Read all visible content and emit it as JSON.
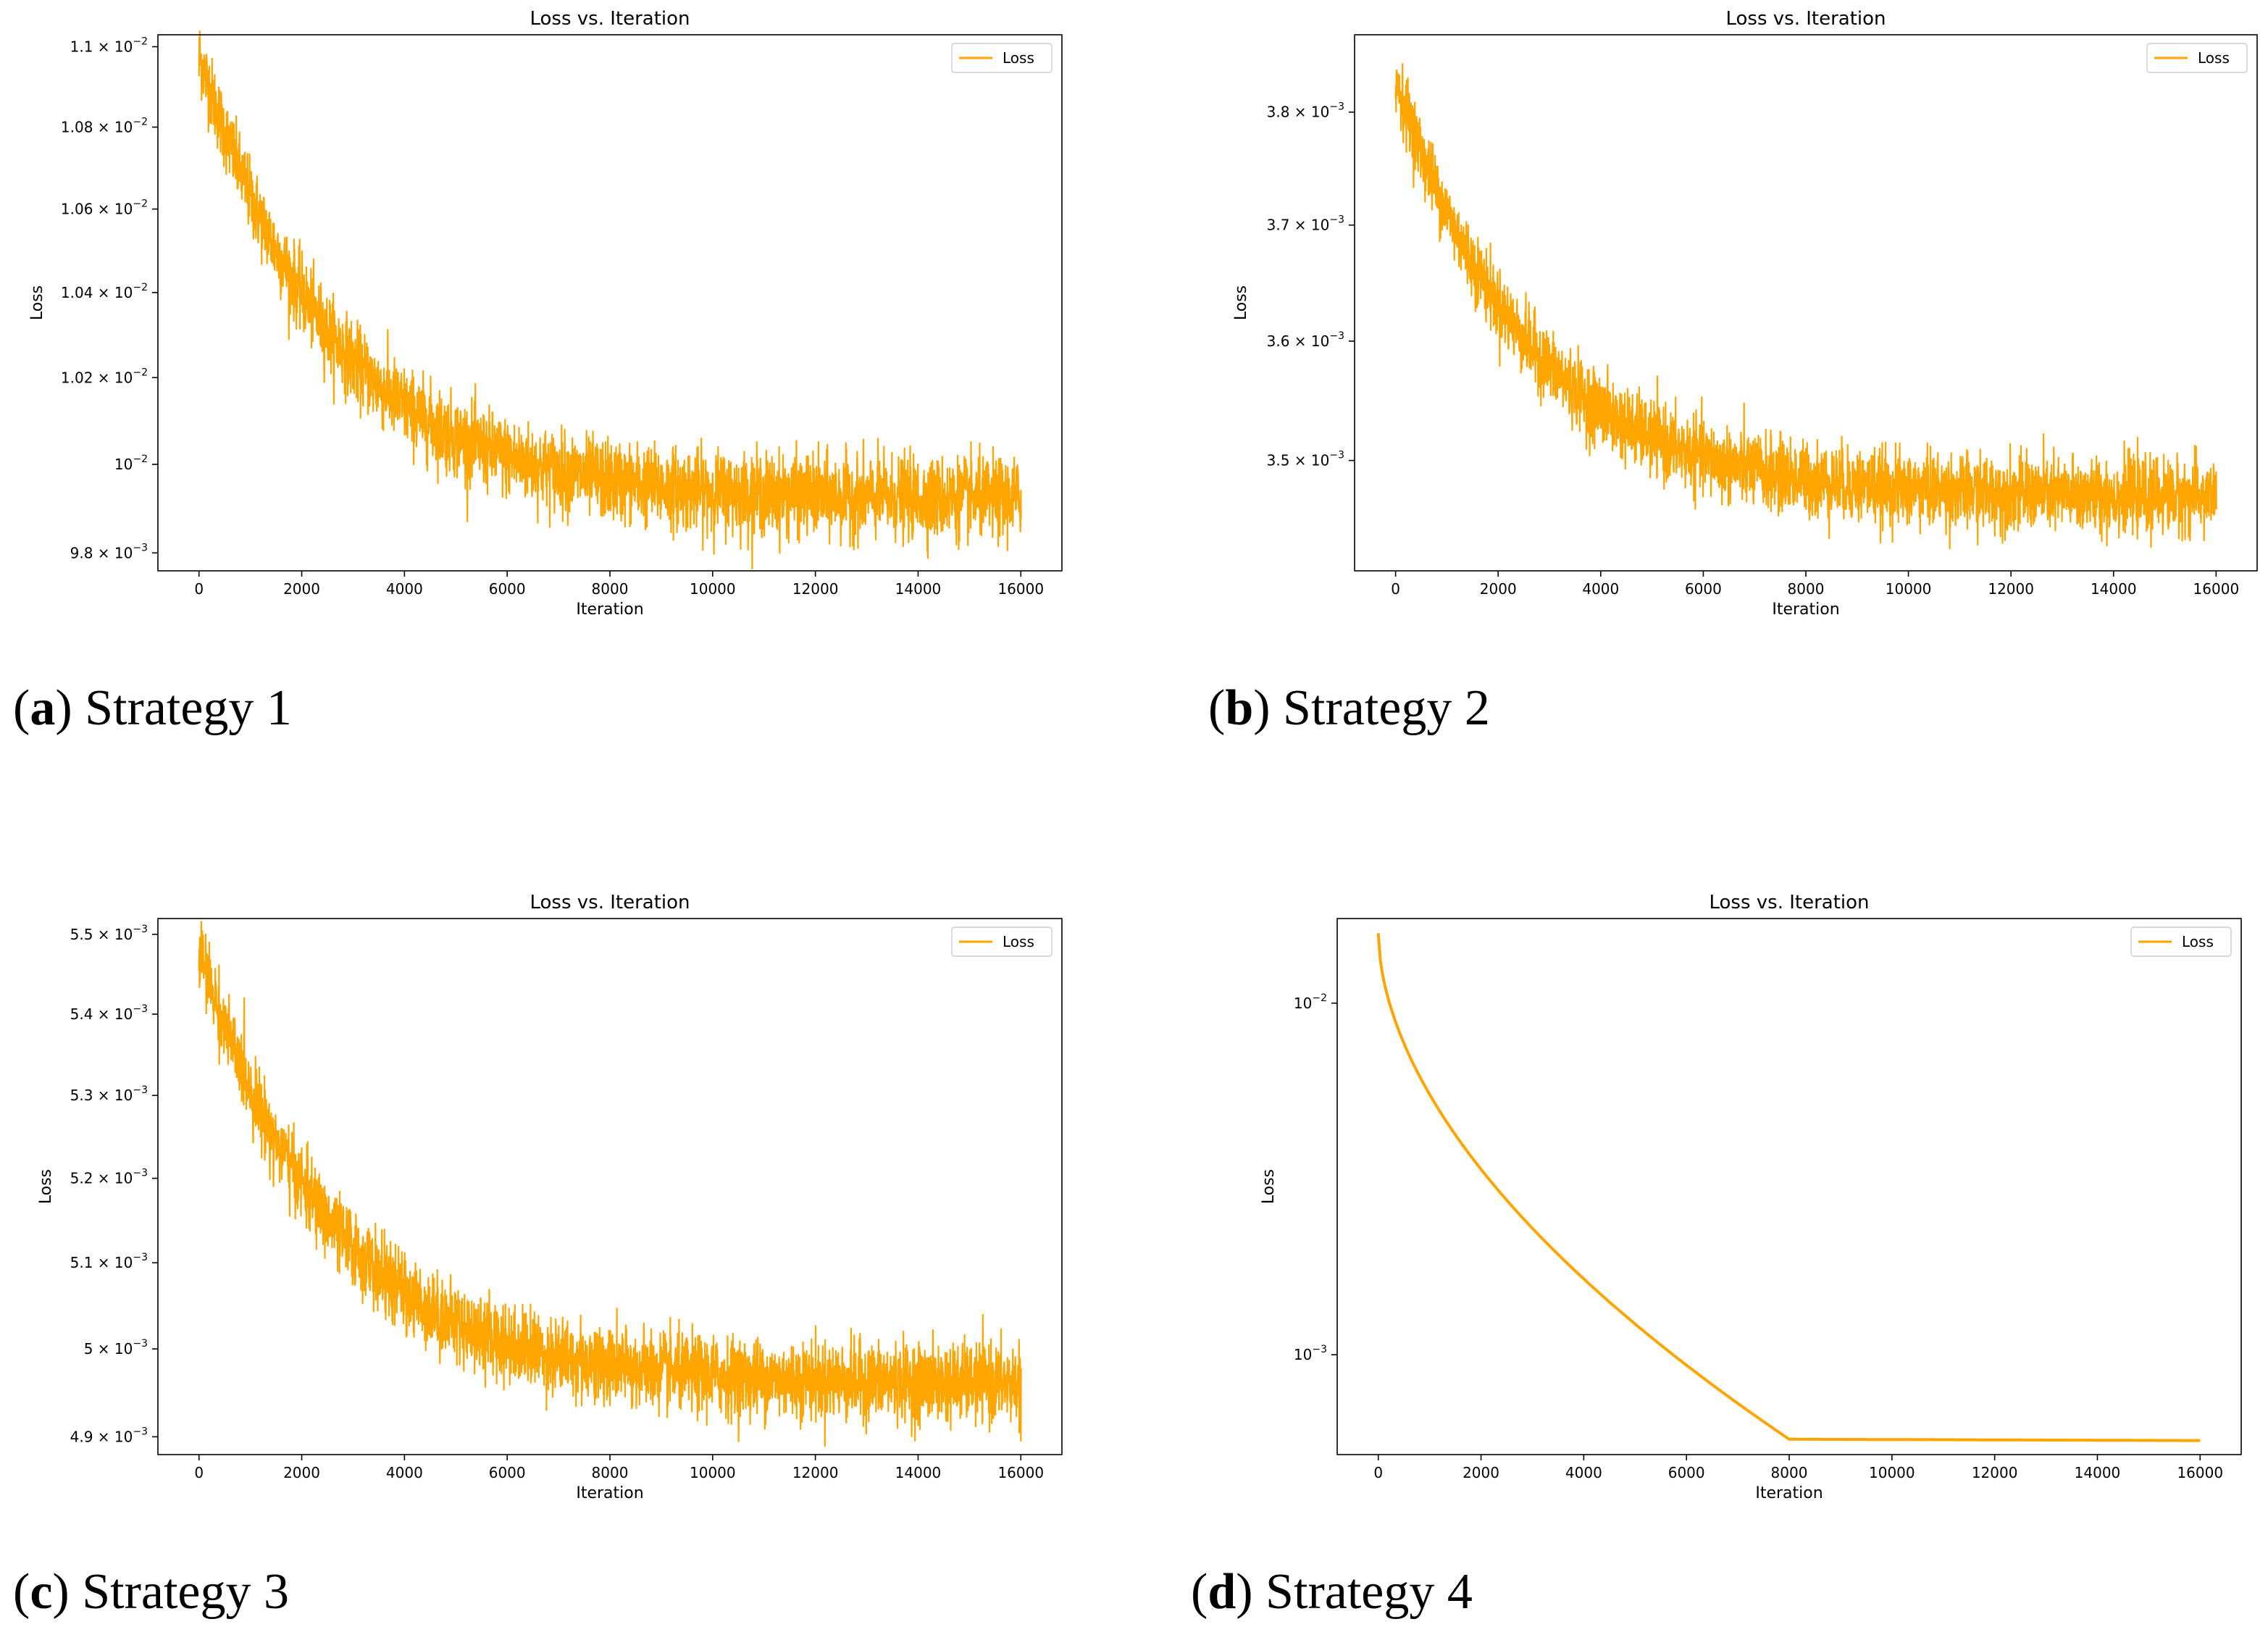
{
  "chart_data": [
    {
      "type": "line",
      "title": "Loss vs. Iteration",
      "xlabel": "Iteration",
      "ylabel": "Loss",
      "legend": [
        "Loss"
      ],
      "legend_position": "top-right",
      "yscale": "log",
      "color": "#FFA500",
      "caption_letter": "a",
      "caption_text": "Strategy 1",
      "xlim": [
        -800,
        16800
      ],
      "ylim": [
        0.00976,
        0.01103
      ],
      "xticks": [
        0,
        2000,
        4000,
        6000,
        8000,
        10000,
        12000,
        14000,
        16000
      ],
      "xtick_labels": [
        "0",
        "2000",
        "4000",
        "6000",
        "8000",
        "10000",
        "12000",
        "14000",
        "16000"
      ],
      "yticks": [
        {
          "value": 0.0098,
          "mant": "9.8 × 10",
          "exp": "−3"
        },
        {
          "value": 0.01,
          "mant": "10",
          "exp": "−2"
        },
        {
          "value": 0.0102,
          "mant": "1.02 × 10",
          "exp": "−2"
        },
        {
          "value": 0.0104,
          "mant": "1.04 × 10",
          "exp": "−2"
        },
        {
          "value": 0.0106,
          "mant": "1.06 × 10",
          "exp": "−2"
        },
        {
          "value": 0.0108,
          "mant": "1.08 × 10",
          "exp": "−2"
        },
        {
          "value": 0.011,
          "mant": "1.1 × 10",
          "exp": "−2"
        }
      ],
      "series": [
        {
          "name": "Loss",
          "start": 0.01098,
          "plateau": 0.00992,
          "decay_iters": 2500,
          "noise": 4.5e-05,
          "n_points": 16000
        }
      ]
    },
    {
      "type": "line",
      "title": "Loss vs. Iteration",
      "xlabel": "Iteration",
      "ylabel": "Loss",
      "legend": [
        "Loss"
      ],
      "legend_position": "top-right",
      "yscale": "log",
      "color": "#FFA500",
      "caption_letter": "b",
      "caption_text": "Strategy 2",
      "xlim": [
        -800,
        16800
      ],
      "ylim": [
        0.00341,
        0.00387
      ],
      "xticks": [
        0,
        2000,
        4000,
        6000,
        8000,
        10000,
        12000,
        14000,
        16000
      ],
      "xtick_labels": [
        "0",
        "2000",
        "4000",
        "6000",
        "8000",
        "10000",
        "12000",
        "14000",
        "16000"
      ],
      "yticks": [
        {
          "value": 0.0035,
          "mant": "3.5 × 10",
          "exp": "−3"
        },
        {
          "value": 0.0036,
          "mant": "3.6 × 10",
          "exp": "−3"
        },
        {
          "value": 0.0037,
          "mant": "3.7 × 10",
          "exp": "−3"
        },
        {
          "value": 0.0038,
          "mant": "3.8 × 10",
          "exp": "−3"
        }
      ],
      "series": [
        {
          "name": "Loss",
          "start": 0.00383,
          "plateau": 0.00347,
          "decay_iters": 2500,
          "noise": 1.5e-05,
          "n_points": 16000
        }
      ]
    },
    {
      "type": "line",
      "title": "Loss vs. Iteration",
      "xlabel": "Iteration",
      "ylabel": "Loss",
      "legend": [
        "Loss"
      ],
      "legend_position": "top-right",
      "yscale": "log",
      "color": "#FFA500",
      "caption_letter": "c",
      "caption_text": "Strategy 3",
      "xlim": [
        -800,
        16800
      ],
      "ylim": [
        0.00488,
        0.00552
      ],
      "xticks": [
        0,
        2000,
        4000,
        6000,
        8000,
        10000,
        12000,
        14000,
        16000
      ],
      "xtick_labels": [
        "0",
        "2000",
        "4000",
        "6000",
        "8000",
        "10000",
        "12000",
        "14000",
        "16000"
      ],
      "yticks": [
        {
          "value": 0.0049,
          "mant": "4.9 × 10",
          "exp": "−3"
        },
        {
          "value": 0.005,
          "mant": "5 × 10",
          "exp": "−3"
        },
        {
          "value": 0.0051,
          "mant": "5.1 × 10",
          "exp": "−3"
        },
        {
          "value": 0.0052,
          "mant": "5.2 × 10",
          "exp": "−3"
        },
        {
          "value": 0.0053,
          "mant": "5.3 × 10",
          "exp": "−3"
        },
        {
          "value": 0.0054,
          "mant": "5.4 × 10",
          "exp": "−3"
        },
        {
          "value": 0.0055,
          "mant": "5.5 × 10",
          "exp": "−3"
        }
      ],
      "series": [
        {
          "name": "Loss",
          "start": 0.00548,
          "plateau": 0.00496,
          "decay_iters": 2500,
          "noise": 2.2e-05,
          "n_points": 16000
        }
      ]
    },
    {
      "type": "line",
      "title": "Loss vs. Iteration",
      "xlabel": "Iteration",
      "ylabel": "Loss",
      "legend": [
        "Loss"
      ],
      "legend_position": "top-right",
      "yscale": "log",
      "color": "#FFA500",
      "caption_letter": "d",
      "caption_text": "Strategy 4",
      "xlim": [
        -800,
        16800
      ],
      "ylim": [
        0.00052,
        0.0174
      ],
      "xticks": [
        0,
        2000,
        4000,
        6000,
        8000,
        10000,
        12000,
        14000,
        16000
      ],
      "xtick_labels": [
        "0",
        "2000",
        "4000",
        "6000",
        "8000",
        "10000",
        "12000",
        "14000",
        "16000"
      ],
      "yticks": [
        {
          "value": 0.001,
          "mant": "10",
          "exp": "−3"
        },
        {
          "value": 0.01,
          "mant": "10",
          "exp": "−2"
        }
      ],
      "series": [
        {
          "name": "Loss",
          "start": 0.0158,
          "knee_x": 8000,
          "knee_y": 0.000575,
          "plateau": 0.00057,
          "n_points": 400
        }
      ]
    }
  ]
}
